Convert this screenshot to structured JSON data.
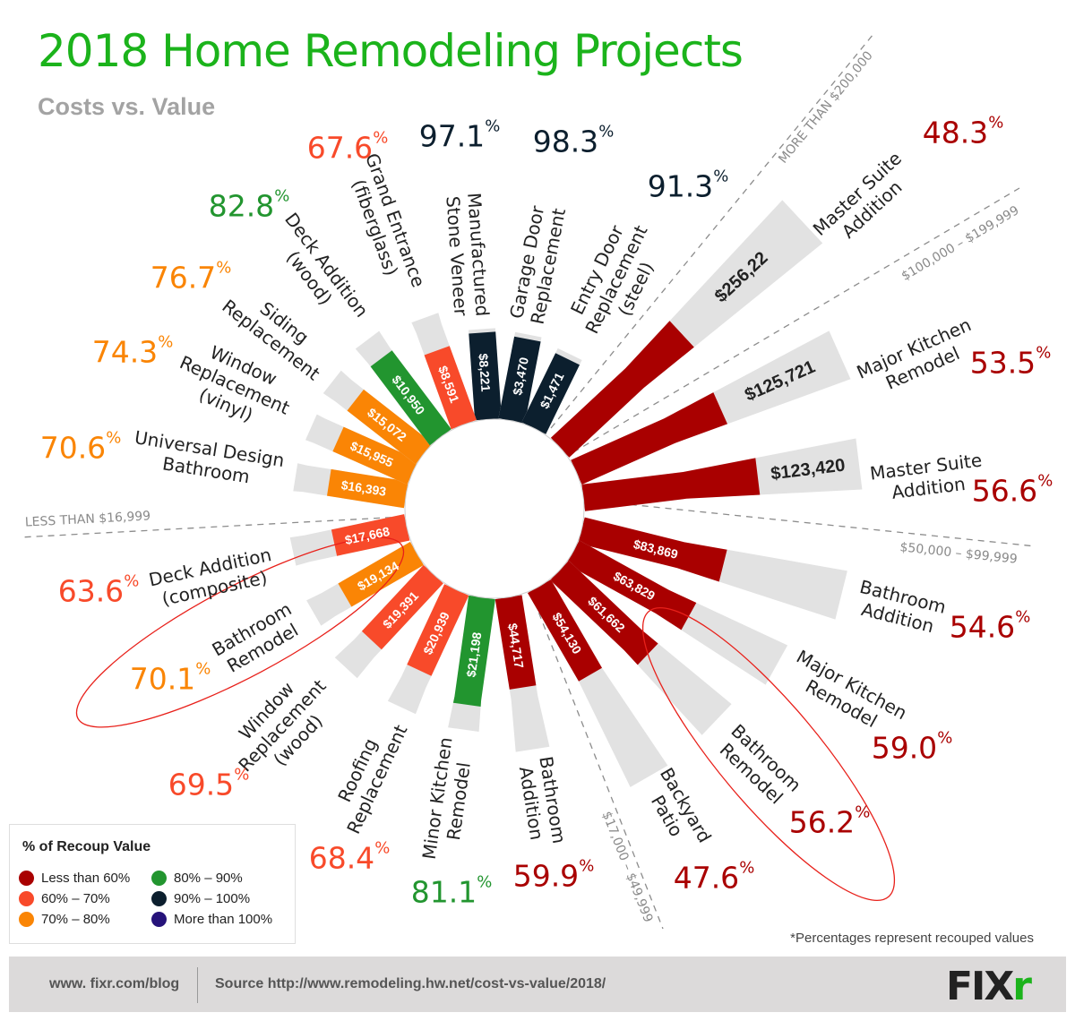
{
  "title": "2018 Home Remodeling Projects",
  "subtitle": "Costs vs. Value",
  "percent_symbol": "%",
  "chart_data": {
    "type": "bar",
    "layout": "radial",
    "title": "2018 Home Remodeling Projects",
    "subtitle": "Costs vs. Value",
    "projects": [
      {
        "name_lines": [
          "Manufactured",
          "Stone Veneer"
        ],
        "cost": "$8,221",
        "recoup": "97.1",
        "category": "90-100"
      },
      {
        "name_lines": [
          "Garage Door",
          "Replacement"
        ],
        "cost": "$3,470",
        "recoup": "98.3",
        "category": "90-100"
      },
      {
        "name_lines": [
          "Entry Door",
          "Replacement",
          "(steel)"
        ],
        "cost": "$1,471",
        "recoup": "91.3",
        "category": "90-100"
      },
      {
        "name_lines": [
          "Master Suite",
          "Addition"
        ],
        "cost": "$256,22",
        "recoup": "48.3",
        "category": "lt60"
      },
      {
        "name_lines": [
          "Major Kitchen",
          "Remodel"
        ],
        "cost": "$125,721",
        "recoup": "53.5",
        "category": "lt60"
      },
      {
        "name_lines": [
          "Master Suite",
          "Addition"
        ],
        "cost": "$123,420",
        "recoup": "56.6",
        "category": "lt60"
      },
      {
        "name_lines": [
          "Bathroom",
          "Addition"
        ],
        "cost": "$83,869",
        "recoup": "54.6",
        "category": "lt60"
      },
      {
        "name_lines": [
          "Major Kitchen",
          "Remodel"
        ],
        "cost": "$63,829",
        "recoup": "59.0",
        "category": "lt60"
      },
      {
        "name_lines": [
          "Bathroom",
          "Remodel"
        ],
        "cost": "$61,662",
        "recoup": "56.2",
        "category": "lt60"
      },
      {
        "name_lines": [
          "Backyard",
          "Patio"
        ],
        "cost": "$54,130",
        "recoup": "47.6",
        "category": "lt60"
      },
      {
        "name_lines": [
          "Bathroom",
          "Addition"
        ],
        "cost": "$44,717",
        "recoup": "59.9",
        "category": "lt60"
      },
      {
        "name_lines": [
          "Minor Kitchen",
          "Remodel"
        ],
        "cost": "$21,198",
        "recoup": "81.1",
        "category": "80-90"
      },
      {
        "name_lines": [
          "Roofing",
          "Replacement"
        ],
        "cost": "$20,939",
        "recoup": "68.4",
        "category": "60-70"
      },
      {
        "name_lines": [
          "Window",
          "Replacement",
          "(wood)"
        ],
        "cost": "$19,391",
        "recoup": "69.5",
        "category": "60-70"
      },
      {
        "name_lines": [
          "Bathroom",
          "Remodel"
        ],
        "cost": "$19,134",
        "recoup": "70.1",
        "category": "70-80"
      },
      {
        "name_lines": [
          "Deck Addition",
          "(composite)"
        ],
        "cost": "$17,668",
        "recoup": "63.6",
        "category": "60-70"
      },
      {
        "name_lines": [
          "Universal Design",
          "Bathroom"
        ],
        "cost": "$16,393",
        "recoup": "70.6",
        "category": "70-80"
      },
      {
        "name_lines": [
          "Window",
          "Replacement",
          "(vinyl)"
        ],
        "cost": "$15,955",
        "recoup": "74.3",
        "category": "70-80"
      },
      {
        "name_lines": [
          "Siding",
          "Replacement"
        ],
        "cost": "$15,072",
        "recoup": "76.7",
        "category": "70-80"
      },
      {
        "name_lines": [
          "Deck Addition",
          "(wood)"
        ],
        "cost": "$10,950",
        "recoup": "82.8",
        "category": "80-90"
      },
      {
        "name_lines": [
          "Grand Entrance",
          "(fiberglass)"
        ],
        "cost": "$8,591",
        "recoup": "67.6",
        "category": "60-70"
      }
    ],
    "cost_ranges": [
      "MORE THAN $200,000",
      "$100,000 – $199,999",
      "$50,000 – $99,999",
      "$17,000 – $49,999",
      "LESS THAN $16,999"
    ],
    "highlighted_projects": [
      "Bathroom Remodel ($19,134)",
      "Bathroom Remodel ($61,662)"
    ],
    "highlight_color": "#e8201a",
    "track_color": "#e2e2e2"
  },
  "legend": {
    "title": "% of Recoup Value",
    "items": [
      {
        "key": "lt60",
        "label": "Less than 60%",
        "color": "#a90000"
      },
      {
        "key": "60-70",
        "label": "60% – 70%",
        "color": "#f84a2a"
      },
      {
        "key": "70-80",
        "label": "70% – 80%",
        "color": "#fa8505"
      },
      {
        "key": "80-90",
        "label": "80% – 90%",
        "color": "#22952f"
      },
      {
        "key": "90-100",
        "label": "90% – 100%",
        "color": "#0c1f2e"
      },
      {
        "key": "gt100",
        "label": "More than 100%",
        "color": "#26137a"
      }
    ]
  },
  "footnote": "*Percentages represent recouped values",
  "footer": {
    "site": "www. fixr.com/blog",
    "source": "Source http://www.remodeling.hw.net/cost-vs-value/2018/",
    "logo_main": "FIX",
    "logo_accent": "r"
  }
}
